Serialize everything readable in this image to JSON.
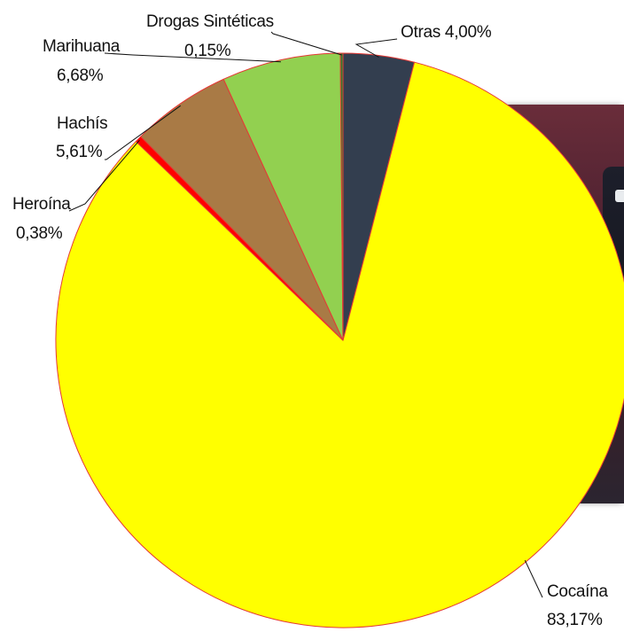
{
  "chart_data": {
    "type": "pie",
    "title": "",
    "slices": [
      {
        "name": "Otras",
        "value": 4.0,
        "display": "4,00%",
        "color": "#333e4f"
      },
      {
        "name": "Cocaína",
        "value": 83.17,
        "display": "83,17%",
        "color": "#ffff00"
      },
      {
        "name": "Heroína",
        "value": 0.38,
        "display": "0,38%",
        "color": "#ff0000"
      },
      {
        "name": "Hachís",
        "value": 5.61,
        "display": "5,61%",
        "color": "#a97a45"
      },
      {
        "name": "Marihuana",
        "value": 6.68,
        "display": "6,68%",
        "color": "#92d050"
      },
      {
        "name": "Drogas Sintéticas",
        "value": 0.15,
        "display": "0,15%",
        "color": "#2e7d32"
      }
    ],
    "start_angle_deg": 0,
    "direction": "clockwise",
    "slice_outline_color": "#e53935",
    "legend": "none",
    "labels": [
      {
        "id": "otras",
        "lines": [
          "Otras 4,00%"
        ]
      },
      {
        "id": "cocaina",
        "lines": [
          "Cocaína",
          "83,17%"
        ]
      },
      {
        "id": "heroina",
        "lines": [
          "Heroína",
          "0,38%"
        ]
      },
      {
        "id": "hachis",
        "lines": [
          "Hachís",
          "5,61%"
        ]
      },
      {
        "id": "marihuana",
        "lines": [
          "Marihuana",
          "6,68%"
        ]
      },
      {
        "id": "sinteticas",
        "lines": [
          "Drogas Sintéticas",
          "0,15%"
        ]
      }
    ]
  }
}
